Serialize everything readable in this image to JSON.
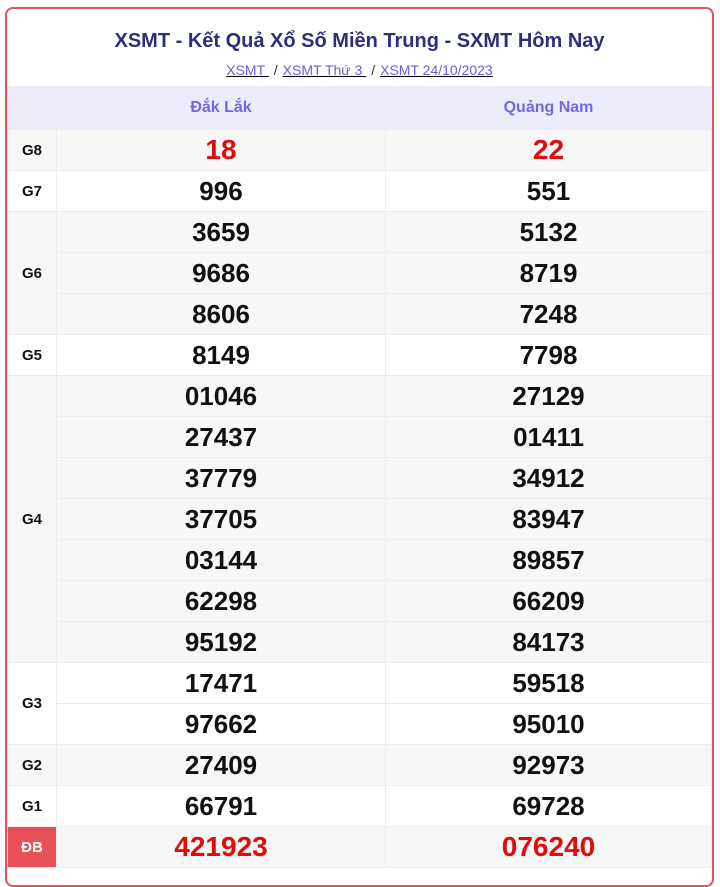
{
  "header": {
    "title": "XSMT - Kết Quả Xổ Số Miền Trung - SXMT Hôm Nay"
  },
  "breadcrumb": [
    {
      "label": "XSMT "
    },
    {
      "label": "XSMT Thứ 3 "
    },
    {
      "label": "XSMT 24/10/2023"
    }
  ],
  "breadcrumb_separator": "/",
  "columns": [
    "Đắk Lắk",
    "Quảng Nam"
  ],
  "colors": {
    "accent": "#e8515a",
    "title": "#2e2f7a",
    "header_text": "#7167e6",
    "highlight": "#e20a0a"
  },
  "prizes": [
    {
      "label": "G8",
      "values": [
        [
          "18"
        ],
        [
          "22"
        ]
      ],
      "highlight": true
    },
    {
      "label": "G7",
      "values": [
        [
          "996"
        ],
        [
          "551"
        ]
      ]
    },
    {
      "label": "G6",
      "values": [
        [
          "3659",
          "9686",
          "8606"
        ],
        [
          "5132",
          "8719",
          "7248"
        ]
      ]
    },
    {
      "label": "G5",
      "values": [
        [
          "8149"
        ],
        [
          "7798"
        ]
      ]
    },
    {
      "label": "G4",
      "values": [
        [
          "01046",
          "27437",
          "37779",
          "37705",
          "03144",
          "62298",
          "95192"
        ],
        [
          "27129",
          "01411",
          "34912",
          "83947",
          "89857",
          "66209",
          "84173"
        ]
      ]
    },
    {
      "label": "G3",
      "values": [
        [
          "17471",
          "97662"
        ],
        [
          "59518",
          "95010"
        ]
      ]
    },
    {
      "label": "G2",
      "values": [
        [
          "27409"
        ],
        [
          "92973"
        ]
      ]
    },
    {
      "label": "G1",
      "values": [
        [
          "66791"
        ],
        [
          "69728"
        ]
      ]
    },
    {
      "label": "ĐB",
      "values": [
        [
          "421923"
        ],
        [
          "076240"
        ]
      ],
      "highlight": true,
      "special": true
    }
  ]
}
